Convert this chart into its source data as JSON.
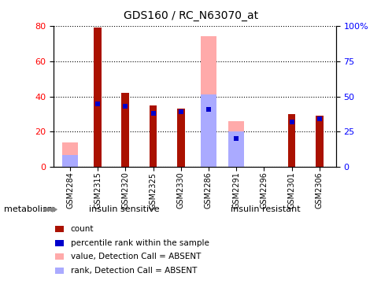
{
  "title": "GDS160 / RC_N63070_at",
  "samples": [
    "GSM2284",
    "GSM2315",
    "GSM2320",
    "GSM2325",
    "GSM2330",
    "GSM2286",
    "GSM2291",
    "GSM2296",
    "GSM2301",
    "GSM2306"
  ],
  "count_values": [
    0,
    79,
    42,
    35,
    33,
    0,
    0,
    0,
    30,
    29
  ],
  "percentile_values": [
    0,
    45,
    43,
    38,
    39,
    41,
    20,
    0,
    32,
    34
  ],
  "absent_value_values": [
    14,
    0,
    0,
    0,
    0,
    74,
    26,
    0,
    0,
    0
  ],
  "absent_rank_values": [
    7,
    0,
    0,
    0,
    0,
    41,
    20,
    0,
    0,
    0
  ],
  "count_color": "#aa1100",
  "percentile_color": "#0000cc",
  "absent_value_color": "#ffaaaa",
  "absent_rank_color": "#aaaaff",
  "group1_label": "insulin sensitive",
  "group2_label": "insulin resistant",
  "group1_color": "#ccffcc",
  "group2_color": "#44dd44",
  "legend_items": [
    {
      "label": "count",
      "color": "#aa1100"
    },
    {
      "label": "percentile rank within the sample",
      "color": "#0000cc"
    },
    {
      "label": "value, Detection Call = ABSENT",
      "color": "#ffaaaa"
    },
    {
      "label": "rank, Detection Call = ABSENT",
      "color": "#aaaaff"
    }
  ],
  "metabolism_label": "metabolism",
  "background_color": "#ffffff",
  "plot_bg_color": "#ffffff",
  "ytick_labels_right": [
    "0",
    "25",
    "50",
    "75",
    "100%"
  ]
}
